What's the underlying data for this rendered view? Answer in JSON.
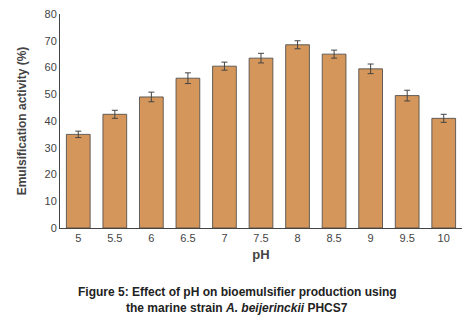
{
  "chart_data": {
    "type": "bar",
    "categories": [
      "5",
      "5.5",
      "6",
      "6.5",
      "7",
      "7.5",
      "8",
      "8.5",
      "9",
      "9.5",
      "10"
    ],
    "values": [
      35.0,
      42.5,
      49.0,
      56.0,
      60.5,
      63.5,
      68.5,
      65.0,
      59.5,
      49.5,
      41.0
    ],
    "errors": [
      1.2,
      1.5,
      1.8,
      2.0,
      1.5,
      1.8,
      1.5,
      1.5,
      1.8,
      2.0,
      1.5
    ],
    "color": "#D4965A",
    "xlabel": "pH",
    "ylabel": "Emulsification activity (%)",
    "ylim": [
      0,
      80
    ],
    "yticks": [
      0,
      10,
      20,
      30,
      40,
      50,
      60,
      70,
      80
    ],
    "grid": false,
    "annotations": [
      "Figure 5: Effect of pH on bioemulsifier production using",
      [
        "the marine strain ",
        "A. beijerinckii",
        " PHCS7"
      ]
    ]
  }
}
